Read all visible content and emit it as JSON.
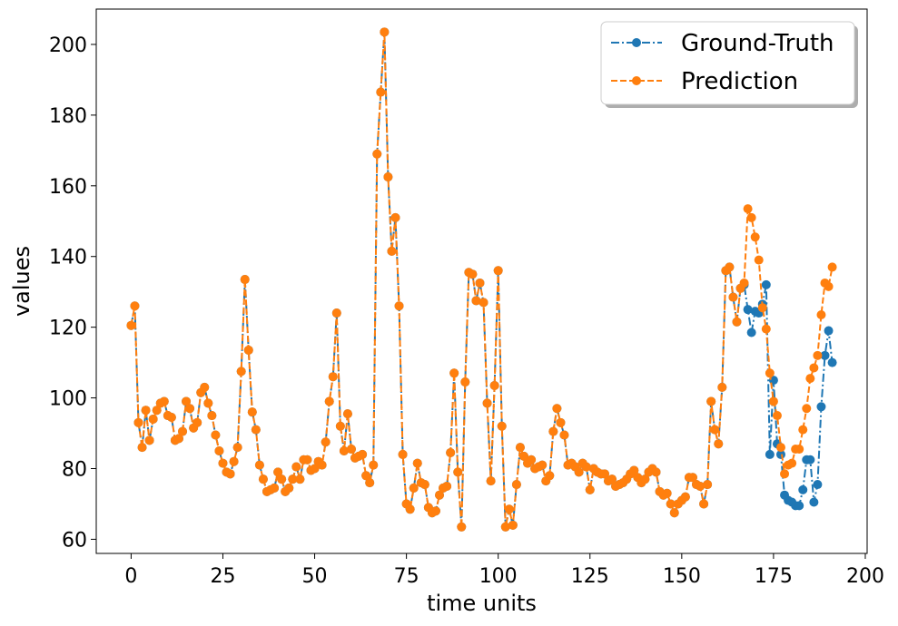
{
  "chart_data": {
    "type": "line",
    "xlabel": "time units",
    "ylabel": "values",
    "xlim": [
      -9.5,
      200.5
    ],
    "ylim": [
      56,
      210
    ],
    "xticks": [
      0,
      25,
      50,
      75,
      100,
      125,
      150,
      175,
      200
    ],
    "yticks": [
      60,
      80,
      100,
      120,
      140,
      160,
      180,
      200
    ],
    "grid": false,
    "legend_position": "top-right",
    "x": [
      0,
      1,
      2,
      3,
      4,
      5,
      6,
      7,
      8,
      9,
      10,
      11,
      12,
      13,
      14,
      15,
      16,
      17,
      18,
      19,
      20,
      21,
      22,
      23,
      24,
      25,
      26,
      27,
      28,
      29,
      30,
      31,
      32,
      33,
      34,
      35,
      36,
      37,
      38,
      39,
      40,
      41,
      42,
      43,
      44,
      45,
      46,
      47,
      48,
      49,
      50,
      51,
      52,
      53,
      54,
      55,
      56,
      57,
      58,
      59,
      60,
      61,
      62,
      63,
      64,
      65,
      66,
      67,
      68,
      69,
      70,
      71,
      72,
      73,
      74,
      75,
      76,
      77,
      78,
      79,
      80,
      81,
      82,
      83,
      84,
      85,
      86,
      87,
      88,
      89,
      90,
      91,
      92,
      93,
      94,
      95,
      96,
      97,
      98,
      99,
      100,
      101,
      102,
      103,
      104,
      105,
      106,
      107,
      108,
      109,
      110,
      111,
      112,
      113,
      114,
      115,
      116,
      117,
      118,
      119,
      120,
      121,
      122,
      123,
      124,
      125,
      126,
      127,
      128,
      129,
      130,
      131,
      132,
      133,
      134,
      135,
      136,
      137,
      138,
      139,
      140,
      141,
      142,
      143,
      144,
      145,
      146,
      147,
      148,
      149,
      150,
      151,
      152,
      153,
      154,
      155,
      156,
      157,
      158,
      159,
      160,
      161,
      162,
      163,
      164,
      165,
      166,
      167,
      168,
      169,
      170,
      171,
      172,
      173,
      174,
      175,
      176,
      177,
      178,
      179,
      180,
      181,
      182,
      183,
      184,
      185,
      186,
      187,
      188,
      189,
      190,
      191
    ],
    "series": [
      {
        "name": "Ground-Truth",
        "color": "#1f77b4",
        "linestyle": "dashdot",
        "marker": "circle",
        "values": [
          120.5,
          126,
          93,
          86,
          96.5,
          88,
          94,
          96.5,
          98.5,
          99,
          95,
          94.5,
          88,
          88.5,
          90.5,
          99,
          97,
          91.5,
          93,
          101.5,
          103,
          98.5,
          95,
          89.5,
          85,
          81.5,
          79,
          78.5,
          82,
          86,
          107.5,
          133.5,
          113.5,
          96,
          91,
          81,
          77,
          73.5,
          74,
          74.5,
          79,
          77,
          73.5,
          74.5,
          77,
          80.5,
          77,
          82.5,
          82.5,
          79.5,
          80,
          82,
          81,
          87.5,
          99,
          106,
          124,
          92,
          85,
          95.5,
          85.5,
          83,
          83.5,
          84,
          78,
          76,
          81,
          169,
          186.5,
          203.5,
          162.5,
          141.5,
          151,
          126,
          84,
          70,
          68.5,
          74.5,
          81.5,
          76,
          75.5,
          69,
          67.5,
          68,
          72.5,
          74.5,
          75,
          84.5,
          107,
          79,
          63.5,
          104.5,
          135.5,
          135,
          127.5,
          132.5,
          127,
          98.5,
          76.5,
          103.5,
          136,
          92,
          63.5,
          68.5,
          64,
          75.5,
          86,
          83.5,
          81.5,
          82.5,
          80,
          80.5,
          81,
          76.5,
          78,
          90.5,
          97,
          93,
          89.5,
          81,
          81.5,
          80.5,
          79,
          81.5,
          80.5,
          74,
          80,
          79,
          78.5,
          78.5,
          76.5,
          77,
          75,
          75.5,
          76,
          77,
          78.5,
          79.5,
          77.5,
          76,
          77,
          79,
          80,
          79,
          73.5,
          72.5,
          73,
          70,
          67.5,
          70,
          71,
          72,
          77.5,
          77.5,
          75.5,
          75,
          70,
          75.5,
          99,
          91,
          87,
          103,
          136,
          137,
          128.5,
          121.5,
          131,
          132,
          125,
          118.5,
          124.5,
          124,
          126.5,
          132,
          84,
          105,
          87,
          84,
          72.5,
          71,
          70.5,
          69.5,
          69.5,
          74,
          82.5,
          82.5,
          70.5,
          75.5,
          97.5,
          112,
          119,
          110
        ]
      },
      {
        "name": "Prediction",
        "color": "#ff7f0e",
        "linestyle": "dashed",
        "marker": "circle",
        "values": [
          120.5,
          126,
          93,
          86,
          96.5,
          88,
          94,
          96.5,
          98.5,
          99,
          95,
          94.5,
          88,
          88.5,
          90.5,
          99,
          97,
          91.5,
          93,
          101.5,
          103,
          98.5,
          95,
          89.5,
          85,
          81.5,
          79,
          78.5,
          82,
          86,
          107.5,
          133.5,
          113.5,
          96,
          91,
          81,
          77,
          73.5,
          74,
          74.5,
          79,
          77,
          73.5,
          74.5,
          77,
          80.5,
          77,
          82.5,
          82.5,
          79.5,
          80,
          82,
          81,
          87.5,
          99,
          106,
          124,
          92,
          85,
          95.5,
          85.5,
          83,
          83.5,
          84,
          78,
          76,
          81,
          169,
          186.5,
          203.5,
          162.5,
          141.5,
          151,
          126,
          84,
          70,
          68.5,
          74.5,
          81.5,
          76,
          75.5,
          69,
          67.5,
          68,
          72.5,
          74.5,
          75,
          84.5,
          107,
          79,
          63.5,
          104.5,
          135.5,
          135,
          127.5,
          132.5,
          127,
          98.5,
          76.5,
          103.5,
          136,
          92,
          63.5,
          68.5,
          64,
          75.5,
          86,
          83.5,
          81.5,
          82.5,
          80,
          80.5,
          81,
          76.5,
          78,
          90.5,
          97,
          93,
          89.5,
          81,
          81.5,
          80.5,
          79,
          81.5,
          80.5,
          74,
          80,
          79,
          78.5,
          78.5,
          76.5,
          77,
          75,
          75.5,
          76,
          77,
          78.5,
          79.5,
          77.5,
          76,
          77,
          79,
          80,
          79,
          73.5,
          72.5,
          73,
          70,
          67.5,
          70,
          71,
          72,
          77.5,
          77.5,
          75.5,
          75,
          70,
          75.5,
          99,
          91,
          87,
          103,
          136,
          137,
          128.5,
          121.5,
          131,
          132.5,
          153.5,
          151,
          145.5,
          139,
          125.5,
          119.5,
          107,
          99,
          95,
          86,
          78.5,
          81,
          81.5,
          85.5,
          85.5,
          91,
          97,
          105.5,
          108.5,
          112,
          123.5,
          132.5,
          131.5,
          137
        ]
      }
    ]
  }
}
